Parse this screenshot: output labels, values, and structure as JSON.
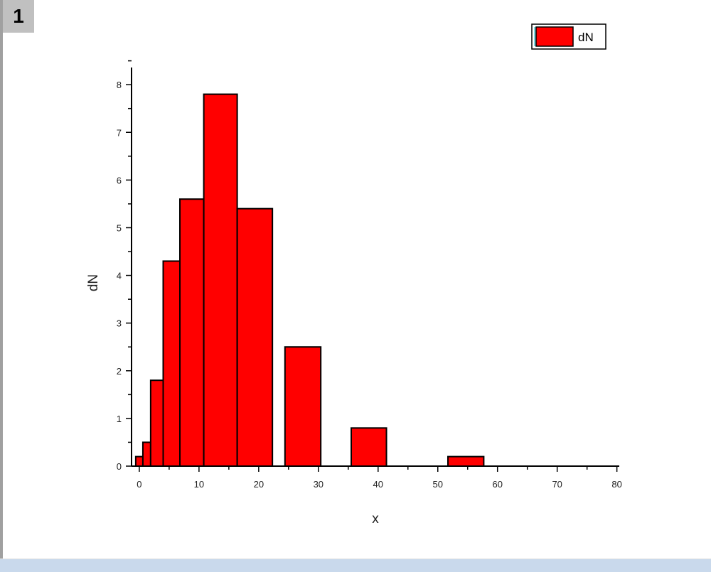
{
  "page": {
    "tab_label": "1"
  },
  "chart_data": {
    "type": "bar",
    "bars": [
      {
        "x0": -0.6,
        "x1": 0.6,
        "y": 0.2
      },
      {
        "x0": 0.6,
        "x1": 1.9,
        "y": 0.5
      },
      {
        "x0": 1.9,
        "x1": 4.0,
        "y": 1.8
      },
      {
        "x0": 4.0,
        "x1": 6.8,
        "y": 4.3
      },
      {
        "x0": 6.8,
        "x1": 10.8,
        "y": 5.6
      },
      {
        "x0": 10.8,
        "x1": 16.4,
        "y": 7.8
      },
      {
        "x0": 16.4,
        "x1": 22.3,
        "y": 5.4
      },
      {
        "x0": 24.4,
        "x1": 30.4,
        "y": 2.5
      },
      {
        "x0": 35.5,
        "x1": 41.4,
        "y": 0.8
      },
      {
        "x0": 51.7,
        "x1": 57.7,
        "y": 0.2
      }
    ],
    "xlabel": "x",
    "ylabel": "dN",
    "xlim": [
      -1.3,
      80.4
    ],
    "ylim": [
      0,
      8.36
    ],
    "xticks": [
      "0",
      "10",
      "20",
      "30",
      "40",
      "50",
      "60",
      "70",
      "80"
    ],
    "yticks": [
      "0",
      "1",
      "2",
      "3",
      "4",
      "5",
      "6",
      "7",
      "8"
    ],
    "legend": {
      "entries": [
        "dN"
      ],
      "placement": "top-right"
    },
    "grid": false,
    "bar_color": "#ff0000",
    "edge_color": "#000000"
  }
}
